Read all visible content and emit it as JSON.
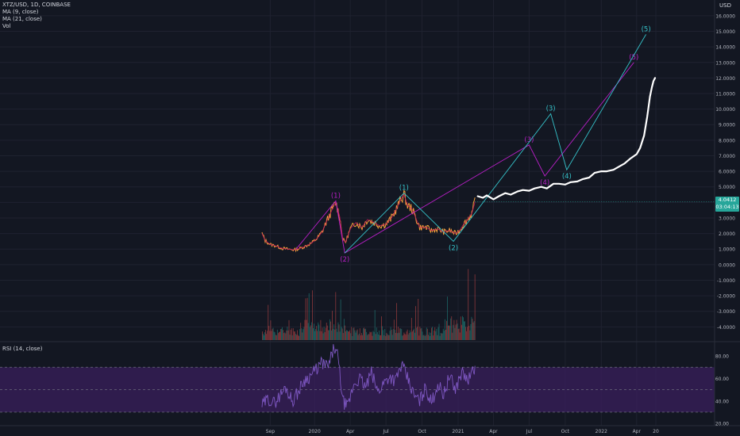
{
  "header": {
    "symbol": "XTZ/USD, 1D, COINBASE",
    "indicators": [
      "MA (9, close)",
      "MA (21, close)",
      "Vol"
    ],
    "currency": "USD"
  },
  "rsi_panel": {
    "label": "RSI (14, close)"
  },
  "price_badge": {
    "price": "4.0412",
    "countdown": "03:04:13",
    "color": "#26a69a"
  },
  "colors": {
    "background": "#131722",
    "grid": "#1f2230",
    "text": "#b2b5be",
    "price_line": "#f6a13b",
    "ma_line": "#c2185b",
    "magenta": "#b81fc6",
    "cyan": "#35c2c9",
    "projection": "#ffffff",
    "rsi": "#7e57c2",
    "rsi_band": "#3a1f5c",
    "volume_up": "#26a69a",
    "volume_down": "#ef5350"
  },
  "chart_data": [
    {
      "type": "line",
      "title": "XTZ/USD, 1D, COINBASE",
      "ylabel": "USD",
      "x_ticks": [
        "Sep",
        "2020",
        "Apr",
        "Jul",
        "Oct",
        "2021",
        "Apr",
        "Jul",
        "Oct",
        "2022",
        "Apr",
        "20"
      ],
      "y_ticks": [
        "16.0000",
        "15.0000",
        "14.0000",
        "13.0000",
        "12.0000",
        "11.0000",
        "10.0000",
        "9.0000",
        "8.0000",
        "7.0000",
        "6.0000",
        "5.0000",
        "4.0000",
        "3.0000",
        "2.0000",
        "1.0000",
        "0.0000",
        "-1.0000",
        "-2.0000",
        "-3.0000",
        "-4.0000"
      ],
      "ylim": [
        -4.9,
        16.3
      ],
      "price_series": {
        "name": "XTZ/USD",
        "x": [
          "2019-08-20",
          "2019-08-28",
          "2019-09-10",
          "2019-09-25",
          "2019-10-10",
          "2019-10-25",
          "2019-11-10",
          "2019-11-25",
          "2019-12-10",
          "2019-12-25",
          "2020-01-08",
          "2020-01-20",
          "2020-02-01",
          "2020-02-14",
          "2020-02-24",
          "2020-03-05",
          "2020-03-13",
          "2020-03-20",
          "2020-04-01",
          "2020-04-15",
          "2020-05-01",
          "2020-05-15",
          "2020-06-01",
          "2020-06-15",
          "2020-07-01",
          "2020-07-15",
          "2020-07-28",
          "2020-08-10",
          "2020-08-16",
          "2020-08-25",
          "2020-09-05",
          "2020-09-15",
          "2020-09-25",
          "2020-10-10",
          "2020-10-25",
          "2020-11-10",
          "2020-11-25",
          "2020-12-10",
          "2020-12-25",
          "2021-01-05",
          "2021-01-15",
          "2021-01-25",
          "2021-02-05",
          "2021-02-13"
        ],
        "y": [
          2.0,
          1.55,
          1.3,
          1.2,
          1.05,
          1.0,
          0.95,
          1.05,
          1.2,
          1.4,
          1.7,
          2.1,
          2.8,
          3.5,
          4.0,
          3.1,
          1.6,
          1.45,
          2.3,
          2.7,
          2.4,
          2.9,
          2.7,
          2.5,
          2.6,
          3.0,
          3.6,
          4.3,
          4.5,
          3.8,
          3.6,
          3.0,
          2.4,
          2.4,
          2.2,
          2.3,
          2.1,
          2.2,
          2.0,
          2.2,
          2.6,
          2.9,
          3.3,
          4.04
        ]
      },
      "projection": {
        "name": "projection",
        "x": [
          "2021-02-20",
          "2021-03-05",
          "2021-03-15",
          "2021-04-01",
          "2021-04-15",
          "2021-05-01",
          "2021-05-15",
          "2021-06-01",
          "2021-06-15",
          "2021-07-01",
          "2021-07-15",
          "2021-08-01",
          "2021-08-15",
          "2021-09-01",
          "2021-09-15",
          "2021-10-01",
          "2021-10-15",
          "2021-11-01",
          "2021-11-15",
          "2021-12-01",
          "2021-12-15",
          "2022-01-01",
          "2022-01-15",
          "2022-02-01",
          "2022-02-15",
          "2022-03-01",
          "2022-03-15",
          "2022-04-01",
          "2022-04-10",
          "2022-04-20",
          "2022-04-28",
          "2022-05-05",
          "2022-05-10",
          "2022-05-14",
          "2022-05-18"
        ],
        "y": [
          4.4,
          4.3,
          4.45,
          4.2,
          4.4,
          4.6,
          4.5,
          4.7,
          4.8,
          4.75,
          4.9,
          5.0,
          4.9,
          5.2,
          5.2,
          5.15,
          5.3,
          5.35,
          5.5,
          5.6,
          5.9,
          6.0,
          6.0,
          6.1,
          6.3,
          6.5,
          6.8,
          7.1,
          7.5,
          8.3,
          9.5,
          10.8,
          11.4,
          11.8,
          12.0
        ]
      },
      "waves_magenta": {
        "name": "magenta wave count",
        "points": [
          {
            "x": "2019-11-15",
            "y": 1.0
          },
          {
            "x": "2020-02-24",
            "y": 4.1
          },
          {
            "x": "2020-03-18",
            "y": 0.75
          },
          {
            "x": "2021-07-01",
            "y": 7.7
          },
          {
            "x": "2021-08-10",
            "y": 5.7
          },
          {
            "x": "2022-03-25",
            "y": 13.0
          }
        ],
        "labels": [
          {
            "text": "(1)",
            "x": "2020-02-24",
            "y": 4.1,
            "pos": "above"
          },
          {
            "text": "(2)",
            "x": "2020-03-18",
            "y": 0.75,
            "pos": "below"
          },
          {
            "text": "(3)",
            "x": "2021-07-01",
            "y": 7.7,
            "pos": "above"
          },
          {
            "text": "(4)",
            "x": "2021-08-10",
            "y": 5.7,
            "pos": "below"
          },
          {
            "text": "(5)",
            "x": "2022-03-25",
            "y": 13.0,
            "pos": "above"
          }
        ]
      },
      "waves_cyan": {
        "name": "cyan wave count",
        "points": [
          {
            "x": "2020-03-18",
            "y": 0.75
          },
          {
            "x": "2020-08-16",
            "y": 4.6
          },
          {
            "x": "2020-12-20",
            "y": 1.5
          },
          {
            "x": "2021-08-25",
            "y": 9.7
          },
          {
            "x": "2021-10-05",
            "y": 6.1
          },
          {
            "x": "2022-04-25",
            "y": 14.8
          }
        ],
        "labels": [
          {
            "text": "(1)",
            "x": "2020-08-16",
            "y": 4.6,
            "pos": "above"
          },
          {
            "text": "(2)",
            "x": "2020-12-20",
            "y": 1.5,
            "pos": "below"
          },
          {
            "text": "(3)",
            "x": "2021-08-25",
            "y": 9.7,
            "pos": "above"
          },
          {
            "text": "(4)",
            "x": "2021-10-05",
            "y": 6.1,
            "pos": "below"
          },
          {
            "text": "(5)",
            "x": "2022-04-25",
            "y": 14.8,
            "pos": "above"
          }
        ]
      }
    },
    {
      "type": "line",
      "title": "RSI (14, close)",
      "y_ticks": [
        "80.00",
        "60.00",
        "40.00",
        "20.00"
      ],
      "ylim": [
        18,
        92
      ],
      "band": [
        30,
        70
      ],
      "series": [
        {
          "name": "RSI",
          "x": [
            "2019-08-20",
            "2019-09-05",
            "2019-09-20",
            "2019-10-05",
            "2019-10-20",
            "2019-11-05",
            "2019-11-20",
            "2019-12-05",
            "2019-12-20",
            "2020-01-05",
            "2020-01-20",
            "2020-02-05",
            "2020-02-20",
            "2020-03-01",
            "2020-03-13",
            "2020-03-25",
            "2020-04-10",
            "2020-04-25",
            "2020-05-10",
            "2020-05-25",
            "2020-06-10",
            "2020-06-25",
            "2020-07-10",
            "2020-07-25",
            "2020-08-10",
            "2020-08-25",
            "2020-09-10",
            "2020-09-25",
            "2020-10-10",
            "2020-10-25",
            "2020-11-10",
            "2020-11-25",
            "2020-12-10",
            "2020-12-25",
            "2021-01-10",
            "2021-01-25",
            "2021-02-05",
            "2021-02-13"
          ],
          "y": [
            36,
            42,
            38,
            45,
            52,
            40,
            48,
            58,
            62,
            68,
            74,
            70,
            88,
            78,
            40,
            34,
            55,
            60,
            52,
            65,
            48,
            56,
            62,
            58,
            72,
            60,
            45,
            40,
            52,
            38,
            55,
            46,
            62,
            50,
            66,
            58,
            64,
            70
          ]
        }
      ]
    }
  ]
}
